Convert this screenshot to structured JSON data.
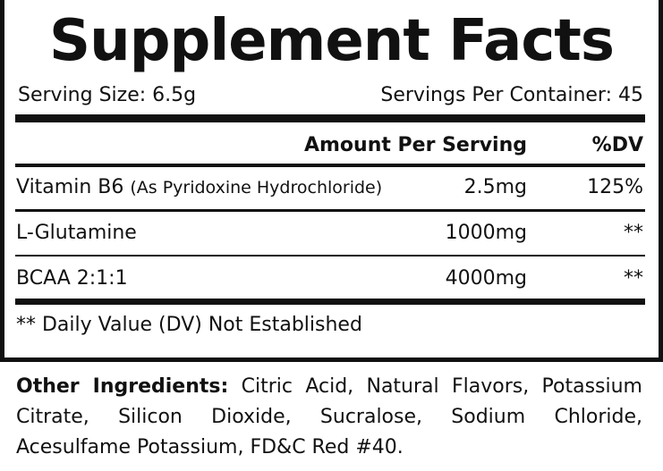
{
  "title": "Supplement Facts",
  "serving_size": "Serving Size: 6.5g",
  "servings_per_container": "Servings Per Container: 45",
  "columns": {
    "amount": "Amount Per Serving",
    "dv": "%DV"
  },
  "rows": [
    {
      "name": "Vitamin B6",
      "detail": "(As Pyridoxine Hydrochloride)",
      "amount": "2.5mg",
      "dv": "125%"
    },
    {
      "name": "L-Glutamine",
      "detail": "",
      "amount": "1000mg",
      "dv": "**"
    },
    {
      "name": "BCAA 2:1:1",
      "detail": "",
      "amount": "4000mg",
      "dv": "**"
    }
  ],
  "footnote": "** Daily Value (DV) Not Established",
  "other_ingredients": {
    "label": "Other Ingredients:",
    "text": "Citric Acid, Natural Flavors, Potassium Citrate, Silicon Dioxide, Sucralose, Sodium Chloride, Acesulfame Potassium, FD&C Red #40."
  }
}
